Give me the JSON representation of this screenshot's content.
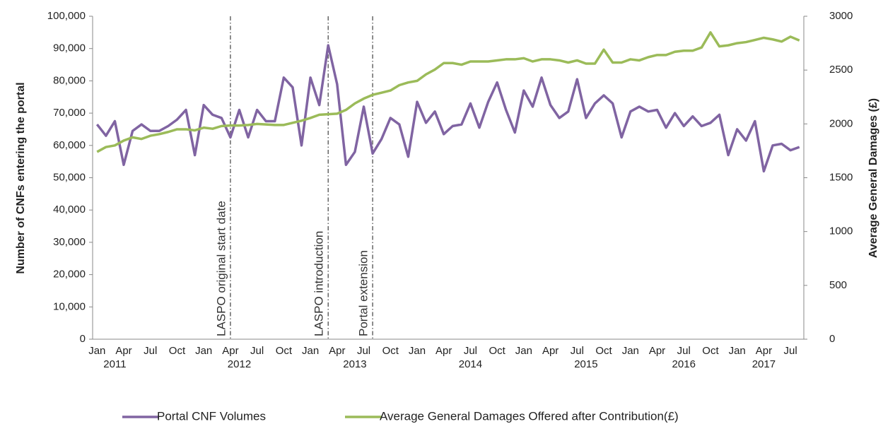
{
  "chart_data": {
    "type": "line",
    "categories": [
      "Jan",
      null,
      null,
      "Apr",
      null,
      null,
      "Jul",
      null,
      null,
      "Oct",
      null,
      null,
      "Jan",
      null,
      null,
      "Apr",
      null,
      null,
      "Jul",
      null,
      null,
      "Oct",
      null,
      null,
      "Jan",
      null,
      null,
      "Apr",
      null,
      null,
      "Jul",
      null,
      null,
      "Oct",
      null,
      null,
      "Jan",
      null,
      null,
      "Apr",
      null,
      null,
      "Jul",
      null,
      null,
      "Oct",
      null,
      null,
      "Jan",
      null,
      null,
      "Apr",
      null,
      null,
      "Jul",
      null,
      null,
      "Oct",
      null,
      null,
      "Jan",
      null,
      null,
      "Apr",
      null,
      null,
      "Jul",
      null,
      null,
      "Oct",
      null,
      null,
      "Jan",
      null,
      null,
      "Apr",
      null,
      null,
      "Jul",
      null
    ],
    "year_labels": [
      null,
      null,
      "2011",
      null,
      null,
      null,
      null,
      null,
      null,
      null,
      null,
      null,
      null,
      null,
      null,
      null,
      "2012",
      null,
      null,
      null,
      null,
      null,
      null,
      null,
      null,
      null,
      null,
      null,
      null,
      "2013",
      null,
      null,
      null,
      null,
      null,
      null,
      null,
      null,
      null,
      null,
      null,
      null,
      "2014",
      null,
      null,
      null,
      null,
      null,
      null,
      null,
      null,
      null,
      null,
      null,
      null,
      "2015",
      null,
      null,
      null,
      null,
      null,
      null,
      null,
      null,
      null,
      null,
      "2016",
      null,
      null,
      null,
      null,
      null,
      null,
      null,
      null,
      "2017",
      null,
      null,
      null,
      null
    ],
    "series": [
      {
        "name": "Portal CNF Volumes",
        "color": "#8064a2",
        "values": [
          66500,
          63000,
          67500,
          54000,
          64500,
          66500,
          64500,
          64500,
          66000,
          68000,
          71000,
          57000,
          72500,
          69500,
          68500,
          62500,
          71000,
          62500,
          71000,
          67500,
          67500,
          81000,
          78000,
          60000,
          81000,
          72500,
          91000,
          79000,
          54000,
          58000,
          72000,
          57500,
          62000,
          68500,
          66500,
          56500,
          73500,
          67000,
          70500,
          63500,
          66000,
          66500,
          73000,
          65500,
          73500,
          79500,
          71000,
          64000,
          77000,
          72000,
          81000,
          72500,
          68500,
          70500,
          80500,
          68500,
          73000,
          75500,
          73000,
          62500,
          70500,
          72000,
          70500,
          71000,
          65500,
          70000,
          66000,
          69000,
          66000,
          67000,
          69500,
          57000,
          65000,
          61500,
          67500,
          52000,
          60000,
          60500,
          58500,
          59500
        ]
      },
      {
        "name": "Average General Damages Offered after Contribution(£)",
        "color": "#9bbb59",
        "axis": "y2",
        "values": [
          1740,
          1785,
          1800,
          1845,
          1875,
          1860,
          1890,
          1905,
          1925,
          1950,
          1950,
          1940,
          1965,
          1955,
          1980,
          1985,
          1985,
          1990,
          2000,
          1995,
          1990,
          1990,
          2010,
          2030,
          2055,
          2085,
          2090,
          2095,
          2130,
          2190,
          2235,
          2270,
          2290,
          2310,
          2360,
          2385,
          2400,
          2460,
          2505,
          2565,
          2565,
          2550,
          2580,
          2580,
          2580,
          2590,
          2600,
          2600,
          2610,
          2580,
          2600,
          2600,
          2590,
          2570,
          2590,
          2560,
          2560,
          2690,
          2570,
          2570,
          2600,
          2590,
          2620,
          2640,
          2640,
          2670,
          2680,
          2680,
          2710,
          2850,
          2720,
          2730,
          2750,
          2760,
          2780,
          2800,
          2785,
          2765,
          2810,
          2775
        ]
      }
    ],
    "y_label": "Number of CNFs entering the portal",
    "y2_label": "Average General Damages (£)",
    "ylim": [
      0,
      100000
    ],
    "yticks": [
      0,
      {
        "value": 10000,
        "label": "10,000"
      },
      {
        "value": 20000,
        "label": "20,000"
      },
      {
        "value": 30000,
        "label": "30,000"
      },
      {
        "value": 40000,
        "label": "40,000"
      },
      {
        "value": 50000,
        "label": "50,000"
      },
      {
        "value": 60000,
        "label": "60,000"
      },
      {
        "value": 70000,
        "label": "70,000"
      },
      {
        "value": 80000,
        "label": "80,000"
      },
      {
        "value": 90000,
        "label": "90,000"
      },
      {
        "value": 100000,
        "label": "100,000"
      }
    ],
    "y2lim": [
      0,
      3000
    ],
    "y2ticks": [
      0,
      500,
      1000,
      1500,
      2000,
      2500,
      3000
    ],
    "annotations": [
      {
        "text": "LASPO original start date",
        "index": 15
      },
      {
        "text": "LASPO introduction",
        "index": 26
      },
      {
        "text": "Portal extension",
        "index": 31
      }
    ],
    "legend": "bottom"
  }
}
